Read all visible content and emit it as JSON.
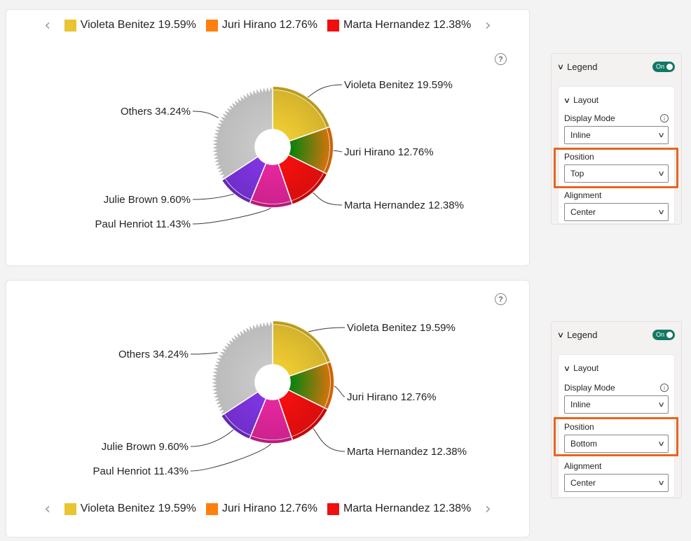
{
  "legend": {
    "items": [
      {
        "name": "Violeta Benitez 19.59%",
        "color": "#e8c531"
      },
      {
        "name": "Juri Hirano 12.76%",
        "color": "#ff7f0e"
      },
      {
        "name": "Marta Hernandez 12.38%",
        "color": "#ef0f0f"
      }
    ],
    "prev": "‹",
    "next": "›"
  },
  "help_label": "?",
  "chart_data": [
    {
      "type": "pie",
      "legend_position": "top",
      "slices": [
        {
          "label": "Violeta Benitez 19.59%",
          "value": 19.59,
          "color": "#e8c531"
        },
        {
          "label": "Juri Hirano 12.76%",
          "value": 12.76,
          "color": "#ff7f0e"
        },
        {
          "label": "Marta Hernandez 12.38%",
          "value": 12.38,
          "color": "#ef0f0f"
        },
        {
          "label": "Paul Henriot 11.43%",
          "value": 11.43,
          "color": "#e0269a"
        },
        {
          "label": "Julie Brown 9.60%",
          "value": 9.6,
          "color": "#7b33dc"
        },
        {
          "label": "Others 34.24%",
          "value": 34.24,
          "color": "#c8c8c8"
        }
      ]
    },
    {
      "type": "pie",
      "legend_position": "bottom",
      "slices": [
        {
          "label": "Violeta Benitez 19.59%",
          "value": 19.59,
          "color": "#e8c531"
        },
        {
          "label": "Juri Hirano 12.76%",
          "value": 12.76,
          "color": "#ff7f0e"
        },
        {
          "label": "Marta Hernandez 12.38%",
          "value": 12.38,
          "color": "#ef0f0f"
        },
        {
          "label": "Paul Henriot 11.43%",
          "value": 11.43,
          "color": "#e0269a"
        },
        {
          "label": "Julie Brown 9.60%",
          "value": 9.6,
          "color": "#7b33dc"
        },
        {
          "label": "Others 34.24%",
          "value": 34.24,
          "color": "#c8c8c8"
        }
      ]
    }
  ],
  "panels": [
    {
      "title": "Legend",
      "toggle": "On",
      "section": "Layout",
      "display_mode_label": "Display Mode",
      "display_mode_value": "Inline",
      "info_icon": "i",
      "position_label": "Position",
      "position_value": "Top",
      "alignment_label": "Alignment",
      "alignment_value": "Center"
    },
    {
      "title": "Legend",
      "toggle": "On",
      "section": "Layout",
      "display_mode_label": "Display Mode",
      "display_mode_value": "Inline",
      "info_icon": "i",
      "position_label": "Position",
      "position_value": "Bottom",
      "alignment_label": "Alignment",
      "alignment_value": "Center"
    }
  ],
  "accent_highlight": "#e8641e",
  "toggle_color": "#117865"
}
